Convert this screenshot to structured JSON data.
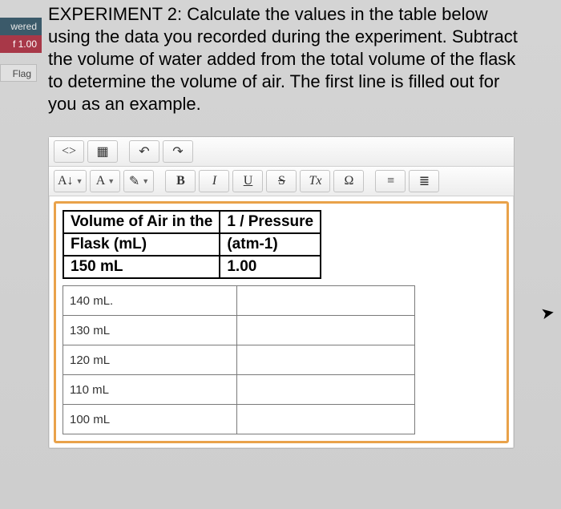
{
  "bookmarks": {
    "b1": "wered",
    "b2": "f 1.00",
    "b3": "Flag"
  },
  "instructions": "EXPERIMENT 2: Calculate the values in the table below using the data you recorded during the experiment. Subtract the volume of water added from the total volume of the flask to determine the volume of air. The first line is filled out for you as an example.",
  "toolbar": {
    "code": "<>",
    "table": "▦",
    "undo": "↶",
    "redo": "↷",
    "font": "A↓",
    "highlight": "A",
    "brush": "✎",
    "bold": "B",
    "italic": "I",
    "underline": "U",
    "strike": "S",
    "clear": "Tx",
    "omega": "Ω",
    "ul": "≡",
    "ol": "≣"
  },
  "htable": {
    "h1a": "Volume of Air in the",
    "h1b": "1 / Pressure",
    "h2a": "Flask (mL)",
    "h2b": "(atm-1)",
    "h3a": "150 mL",
    "h3b": "1.00"
  },
  "rows": {
    "r1a": "140 mL.",
    "r2a": "130 mL",
    "r3a": "120 mL",
    "r4a": "110 mL",
    "r5a": "100 mL"
  },
  "colors": {
    "frame_orange": "#e9a24a",
    "bm_red": "#a83848",
    "bm_blue": "#3b5a6a"
  }
}
